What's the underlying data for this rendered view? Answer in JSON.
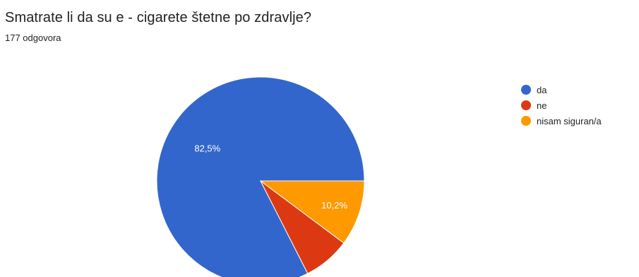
{
  "header": {
    "title": "Smatrate li da su e - cigarete štetne po zdravlje?",
    "response_count": "177 odgovora"
  },
  "chart_data": {
    "type": "pie",
    "slices": [
      {
        "label": "da",
        "value": 82.5,
        "display": "82,5%",
        "color": "#3366cc"
      },
      {
        "label": "ne",
        "value": 7.3,
        "display": "",
        "color": "#dc3912"
      },
      {
        "label": "nisam siguran/a",
        "value": 10.2,
        "display": "10,2%",
        "color": "#ff9900"
      }
    ],
    "legend": {
      "position": "right",
      "items": [
        "da",
        "ne",
        "nisam siguran/a"
      ]
    }
  }
}
